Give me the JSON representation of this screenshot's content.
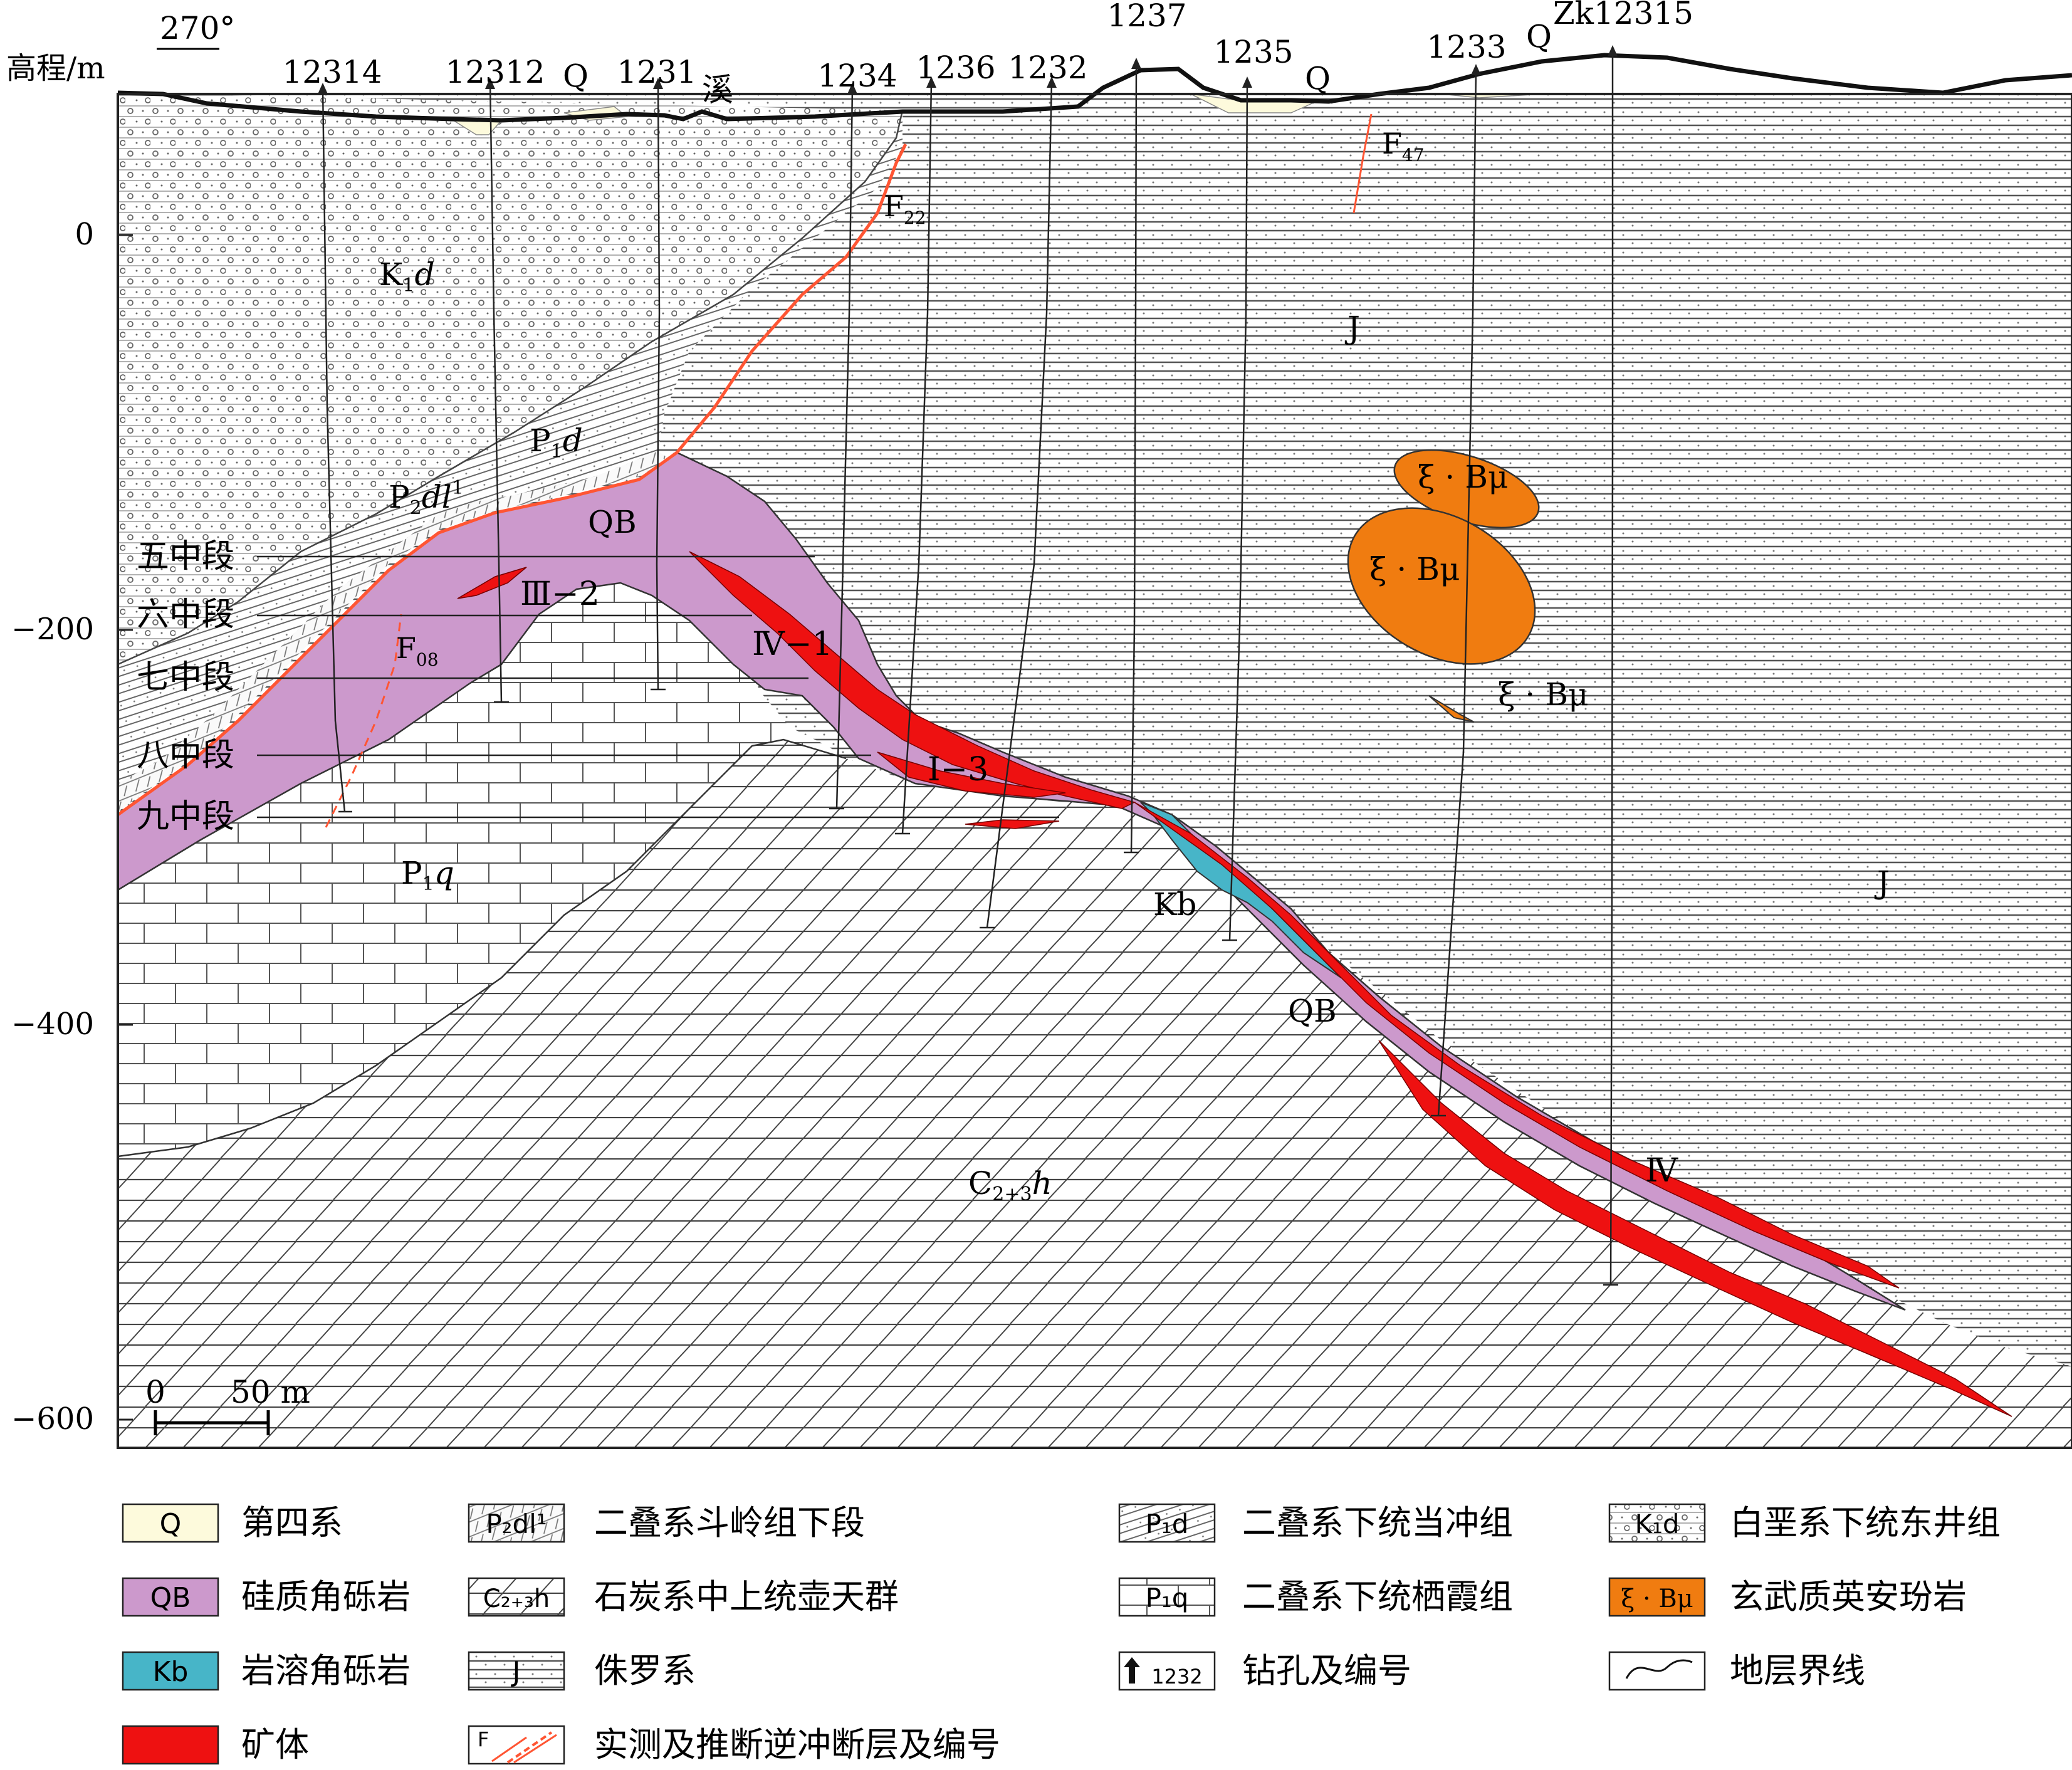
{
  "figure": {
    "azimuth": "270°",
    "elevation_label": "高程/m",
    "elevation_ticks": [
      "0",
      "−200",
      "−400",
      "−600"
    ],
    "drillholes": [
      {
        "label": "12314",
        "name": "hole-12314"
      },
      {
        "label": "12312",
        "name": "hole-12312"
      },
      {
        "label": "1231",
        "name": "hole-1231"
      },
      {
        "label": "1234",
        "name": "hole-1234"
      },
      {
        "label": "1236",
        "name": "hole-1236"
      },
      {
        "label": "1232",
        "name": "hole-1232"
      },
      {
        "label": "1237",
        "name": "hole-1237"
      },
      {
        "label": "1235",
        "name": "hole-1235"
      },
      {
        "label": "1233",
        "name": "hole-1233"
      },
      {
        "label": "Zk12315",
        "name": "hole-zk12315"
      }
    ],
    "creek_label": "溪",
    "levels": [
      "五中段",
      "六中段",
      "七中段",
      "八中段",
      "九中段"
    ],
    "units": {
      "Q": "Q",
      "K1d": {
        "main": "K",
        "sub": "1",
        "tail": "d"
      },
      "J": "J",
      "P1d": {
        "main": "P",
        "sub": "1",
        "tail": "d"
      },
      "P2dl": {
        "main": "P",
        "sub": "2",
        "tail": "dl",
        "sup": "1"
      },
      "QB": "QB",
      "P1q": {
        "main": "P",
        "sub": "1",
        "tail": "q"
      },
      "C23h": {
        "main": "C",
        "sub": "2+3",
        "tail": "h"
      },
      "Kb": "Kb",
      "intrusion": "ξ · Bμ"
    },
    "ore_bodies": [
      "Ⅲ−2",
      "Ⅳ−1",
      "Ⅰ−3",
      "Ⅳ"
    ],
    "faults": [
      {
        "main": "F",
        "sub": "22"
      },
      {
        "main": "F",
        "sub": "08"
      },
      {
        "main": "F",
        "sub": "47"
      }
    ],
    "scale_bar": {
      "start": "0",
      "end": "50 m"
    }
  },
  "legend": [
    {
      "swatch": "Q",
      "label": "第四系"
    },
    {
      "swatch": "P₂dl¹",
      "label": "二叠系斗岭组下段"
    },
    {
      "swatch": "P₁d",
      "label": "二叠系下统当冲组"
    },
    {
      "swatch": "K₁d",
      "label": "白垩系下统东井组"
    },
    {
      "swatch": "QB",
      "label": "硅质角砾岩"
    },
    {
      "swatch": "C₂₊₃h",
      "label": "石炭系中上统壶天群"
    },
    {
      "swatch": "P₁q",
      "label": "二叠系下统栖霞组"
    },
    {
      "swatch": "ξ · Bμ",
      "label": "玄武质英安玢岩"
    },
    {
      "swatch": "Kb",
      "label": "岩溶角砾岩"
    },
    {
      "swatch": "J",
      "label": "侏罗系"
    },
    {
      "swatch": "1232",
      "label": "钻孔及编号"
    },
    {
      "swatch": "",
      "label": "地层界线"
    },
    {
      "swatch": "",
      "label": "矿体"
    },
    {
      "swatch": "F",
      "label": "实测及推断逆冲断层及编号"
    }
  ],
  "colors": {
    "quaternary": "#fdfadc",
    "breccia": "#cc99cc",
    "karst": "#47b5c8",
    "ore": "#ee1111",
    "intrusion": "#f07c10",
    "fault": "#ff5533"
  }
}
